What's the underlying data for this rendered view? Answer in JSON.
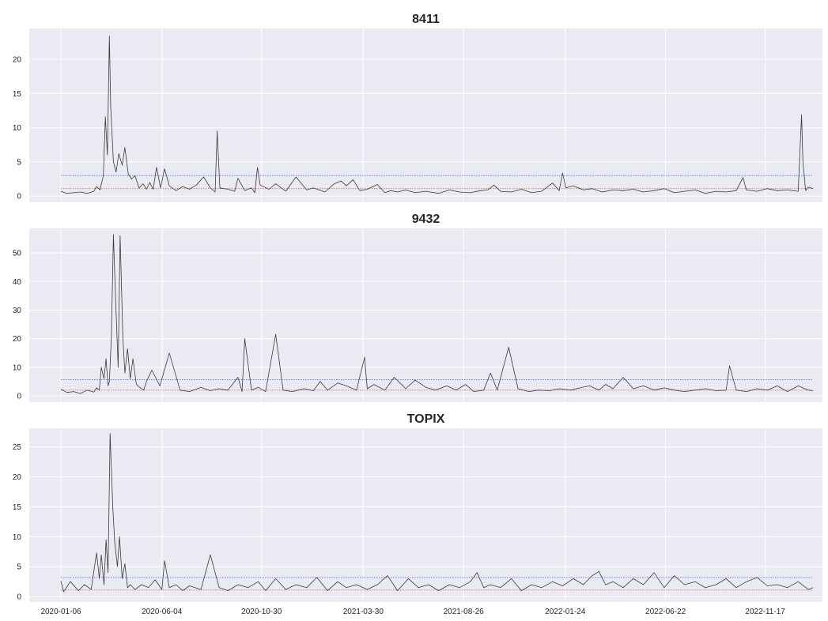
{
  "chart_data": [
    {
      "type": "line",
      "title": "8411",
      "ylim": [
        -0.9,
        24.5
      ],
      "yticks": [
        0,
        5,
        10,
        15,
        20
      ],
      "grid": true,
      "series_color": "#3a3a3a",
      "hlines": [
        {
          "value": 3.0,
          "color": "#5a6cf0",
          "style": "dotted"
        },
        {
          "value": 1.1,
          "color": "#e86464",
          "style": "dotted"
        }
      ],
      "series": [
        {
          "x": [
            "2020-01-06",
            "2020-01-15",
            "2020-01-25",
            "2020-02-04",
            "2020-02-14",
            "2020-02-24",
            "2020-02-28",
            "2020-03-04",
            "2020-03-09",
            "2020-03-12",
            "2020-03-15",
            "2020-03-18",
            "2020-03-20",
            "2020-03-24",
            "2020-03-28",
            "2020-04-01",
            "2020-04-06",
            "2020-04-10",
            "2020-04-15",
            "2020-04-20",
            "2020-04-25",
            "2020-05-01",
            "2020-05-07",
            "2020-05-12",
            "2020-05-17",
            "2020-05-22",
            "2020-05-27",
            "2020-06-02",
            "2020-06-08",
            "2020-06-15",
            "2020-06-25",
            "2020-07-05",
            "2020-07-15",
            "2020-07-25",
            "2020-08-05",
            "2020-08-15",
            "2020-08-22",
            "2020-08-25",
            "2020-08-29",
            "2020-09-10",
            "2020-09-20",
            "2020-09-25",
            "2020-10-05",
            "2020-10-15",
            "2020-10-20",
            "2020-10-24",
            "2020-10-28",
            "2020-11-10",
            "2020-11-20",
            "2020-12-05",
            "2020-12-20",
            "2021-01-05",
            "2021-01-15",
            "2021-02-01",
            "2021-02-15",
            "2021-02-25",
            "2021-03-05",
            "2021-03-15",
            "2021-03-25",
            "2021-04-05",
            "2021-04-20",
            "2021-05-01",
            "2021-05-10",
            "2021-05-20",
            "2021-06-01",
            "2021-06-15",
            "2021-07-01",
            "2021-07-20",
            "2021-08-05",
            "2021-08-20",
            "2021-09-05",
            "2021-09-20",
            "2021-10-01",
            "2021-10-10",
            "2021-10-20",
            "2021-11-05",
            "2021-11-20",
            "2021-12-05",
            "2021-12-20",
            "2022-01-05",
            "2022-01-15",
            "2022-01-20",
            "2022-01-25",
            "2022-02-05",
            "2022-02-20",
            "2022-03-05",
            "2022-03-20",
            "2022-04-05",
            "2022-04-20",
            "2022-05-05",
            "2022-05-20",
            "2022-06-05",
            "2022-06-20",
            "2022-07-05",
            "2022-07-20",
            "2022-08-05",
            "2022-08-20",
            "2022-09-05",
            "2022-09-20",
            "2022-10-05",
            "2022-10-15",
            "2022-10-20",
            "2022-11-05",
            "2022-11-20",
            "2022-12-05",
            "2022-12-20",
            "2023-01-05",
            "2023-01-10",
            "2023-01-12",
            "2023-01-16",
            "2023-01-20",
            "2023-01-27"
          ],
          "y": [
            0.7,
            0.4,
            0.5,
            0.6,
            0.4,
            0.7,
            1.4,
            0.9,
            3.0,
            11.6,
            6.0,
            23.4,
            13.0,
            5.0,
            3.5,
            6.2,
            4.5,
            7.1,
            3.2,
            2.5,
            3.0,
            1.2,
            1.8,
            1.0,
            2.0,
            1.0,
            4.2,
            1.2,
            4.0,
            1.5,
            0.8,
            1.4,
            1.0,
            1.6,
            2.8,
            1.2,
            0.6,
            9.5,
            1.2,
            1.0,
            0.7,
            2.6,
            0.8,
            1.2,
            0.5,
            4.2,
            1.6,
            1.0,
            1.8,
            0.7,
            2.8,
            0.9,
            1.2,
            0.6,
            1.8,
            2.2,
            1.5,
            2.4,
            0.8,
            1.0,
            1.7,
            0.5,
            0.8,
            0.6,
            0.9,
            0.5,
            0.7,
            0.4,
            0.9,
            0.6,
            0.5,
            0.8,
            0.9,
            1.6,
            0.7,
            0.6,
            1.0,
            0.5,
            0.7,
            1.9,
            0.8,
            3.4,
            1.2,
            1.5,
            0.9,
            1.1,
            0.6,
            0.9,
            0.8,
            1.0,
            0.6,
            0.8,
            1.1,
            0.5,
            0.7,
            0.9,
            0.4,
            0.7,
            0.6,
            0.8,
            2.7,
            0.9,
            0.7,
            1.1,
            0.8,
            0.9,
            0.7,
            11.9,
            5.0,
            0.8,
            1.3,
            1.1
          ]
        }
      ]
    },
    {
      "type": "line",
      "title": "9432",
      "ylim": [
        -2.2,
        58.6
      ],
      "yticks": [
        0,
        10,
        20,
        30,
        40,
        50
      ],
      "grid": true,
      "series_color": "#3a3a3a",
      "hlines": [
        {
          "value": 5.7,
          "color": "#5a6cf0",
          "style": "dotted"
        },
        {
          "value": 2.0,
          "color": "#e86464",
          "style": "dotted"
        }
      ],
      "series": [
        {
          "x": [
            "2020-01-06",
            "2020-01-15",
            "2020-01-25",
            "2020-02-04",
            "2020-02-14",
            "2020-02-24",
            "2020-02-28",
            "2020-03-03",
            "2020-03-06",
            "2020-03-10",
            "2020-03-13",
            "2020-03-16",
            "2020-03-18",
            "2020-03-21",
            "2020-03-24",
            "2020-03-27",
            "2020-03-31",
            "2020-04-03",
            "2020-04-07",
            "2020-04-10",
            "2020-04-14",
            "2020-04-18",
            "2020-04-22",
            "2020-04-27",
            "2020-05-02",
            "2020-05-08",
            "2020-05-12",
            "2020-05-20",
            "2020-06-01",
            "2020-06-15",
            "2020-07-01",
            "2020-07-15",
            "2020-08-01",
            "2020-08-15",
            "2020-08-28",
            "2020-09-10",
            "2020-09-25",
            "2020-10-01",
            "2020-10-05",
            "2020-10-15",
            "2020-10-25",
            "2020-11-05",
            "2020-11-20",
            "2020-12-01",
            "2020-12-15",
            "2021-01-01",
            "2021-01-15",
            "2021-01-25",
            "2021-02-05",
            "2021-02-20",
            "2021-03-05",
            "2021-03-20",
            "2021-04-01",
            "2021-04-05",
            "2021-04-15",
            "2021-05-01",
            "2021-05-15",
            "2021-06-01",
            "2021-06-15",
            "2021-07-01",
            "2021-07-15",
            "2021-08-01",
            "2021-08-15",
            "2021-08-29",
            "2021-09-10",
            "2021-09-25",
            "2021-10-05",
            "2021-10-15",
            "2021-11-01",
            "2021-11-15",
            "2021-12-01",
            "2021-12-15",
            "2022-01-01",
            "2022-01-15",
            "2022-02-01",
            "2022-02-15",
            "2022-03-01",
            "2022-03-15",
            "2022-03-25",
            "2022-04-05",
            "2022-04-20",
            "2022-05-05",
            "2022-05-20",
            "2022-06-05",
            "2022-06-20",
            "2022-07-05",
            "2022-07-20",
            "2022-08-05",
            "2022-08-20",
            "2022-09-05",
            "2022-09-20",
            "2022-09-25",
            "2022-10-05",
            "2022-10-20",
            "2022-11-05",
            "2022-11-20",
            "2022-12-05",
            "2022-12-20",
            "2023-01-05",
            "2023-01-20",
            "2023-01-27"
          ],
          "y": [
            2.3,
            1.2,
            1.5,
            0.8,
            2.0,
            1.3,
            2.8,
            2.0,
            10.0,
            6.0,
            13.0,
            3.5,
            5.0,
            21.0,
            56.5,
            35.0,
            10.0,
            56.0,
            20.0,
            8.0,
            16.5,
            6.0,
            13.0,
            4.0,
            3.0,
            2.0,
            5.0,
            9.0,
            3.5,
            15.0,
            2.0,
            1.5,
            3.0,
            1.8,
            2.5,
            2.0,
            6.5,
            1.5,
            20.0,
            2.0,
            3.0,
            1.5,
            21.5,
            2.0,
            1.5,
            2.5,
            1.8,
            5.0,
            2.0,
            4.5,
            3.5,
            2.0,
            13.5,
            2.5,
            4.0,
            2.0,
            6.5,
            2.5,
            5.5,
            3.0,
            2.0,
            3.5,
            2.0,
            4.0,
            1.5,
            2.0,
            8.0,
            2.0,
            17.0,
            2.5,
            1.5,
            2.0,
            1.8,
            2.5,
            2.0,
            2.8,
            3.5,
            2.0,
            4.0,
            2.5,
            6.5,
            2.5,
            3.5,
            2.0,
            2.8,
            2.0,
            1.5,
            2.0,
            2.5,
            1.8,
            2.0,
            10.5,
            2.0,
            1.5,
            2.5,
            2.0,
            3.5,
            1.5,
            3.5,
            2.0,
            1.8
          ]
        }
      ]
    },
    {
      "type": "line",
      "title": "TOPIX",
      "ylim": [
        -0.9,
        28.1
      ],
      "yticks": [
        0,
        5,
        10,
        15,
        20,
        25
      ],
      "grid": true,
      "series_color": "#3a3a3a",
      "hlines": [
        {
          "value": 3.2,
          "color": "#5a6cf0",
          "style": "dotted"
        },
        {
          "value": 1.1,
          "color": "#e86464",
          "style": "dotted"
        }
      ],
      "series": [
        {
          "x": [
            "2020-01-06",
            "2020-01-10",
            "2020-01-20",
            "2020-02-01",
            "2020-02-10",
            "2020-02-20",
            "2020-02-28",
            "2020-03-03",
            "2020-03-06",
            "2020-03-10",
            "2020-03-13",
            "2020-03-16",
            "2020-03-19",
            "2020-03-23",
            "2020-03-26",
            "2020-03-30",
            "2020-04-02",
            "2020-04-06",
            "2020-04-10",
            "2020-04-14",
            "2020-04-18",
            "2020-04-25",
            "2020-05-05",
            "2020-05-15",
            "2020-05-25",
            "2020-06-04",
            "2020-06-08",
            "2020-06-15",
            "2020-06-25",
            "2020-07-05",
            "2020-07-15",
            "2020-08-01",
            "2020-08-15",
            "2020-08-28",
            "2020-09-10",
            "2020-09-25",
            "2020-10-10",
            "2020-10-25",
            "2020-11-05",
            "2020-11-20",
            "2020-12-05",
            "2020-12-20",
            "2021-01-05",
            "2021-01-20",
            "2021-02-05",
            "2021-02-20",
            "2021-03-05",
            "2021-03-20",
            "2021-04-05",
            "2021-04-20",
            "2021-05-05",
            "2021-05-20",
            "2021-06-05",
            "2021-06-20",
            "2021-07-05",
            "2021-07-20",
            "2021-08-05",
            "2021-08-20",
            "2021-09-05",
            "2021-09-15",
            "2021-09-25",
            "2021-10-05",
            "2021-10-20",
            "2021-11-05",
            "2021-11-20",
            "2021-12-05",
            "2021-12-20",
            "2022-01-05",
            "2022-01-20",
            "2022-02-05",
            "2022-02-20",
            "2022-03-05",
            "2022-03-15",
            "2022-03-25",
            "2022-04-05",
            "2022-04-20",
            "2022-05-05",
            "2022-05-20",
            "2022-06-05",
            "2022-06-20",
            "2022-07-05",
            "2022-07-20",
            "2022-08-05",
            "2022-08-20",
            "2022-09-05",
            "2022-09-20",
            "2022-10-05",
            "2022-10-20",
            "2022-11-05",
            "2022-11-20",
            "2022-12-05",
            "2022-12-20",
            "2023-01-05",
            "2023-01-20",
            "2023-01-27"
          ],
          "y": [
            2.6,
            0.8,
            2.5,
            1.0,
            2.0,
            1.2,
            7.3,
            3.0,
            7.0,
            2.0,
            9.5,
            4.0,
            27.2,
            15.0,
            9.0,
            5.0,
            10.0,
            3.0,
            5.5,
            1.5,
            2.0,
            1.2,
            2.0,
            1.5,
            2.8,
            1.2,
            6.0,
            1.5,
            2.0,
            1.0,
            1.8,
            1.2,
            7.0,
            1.5,
            1.0,
            2.0,
            1.5,
            2.5,
            1.0,
            3.0,
            1.2,
            2.0,
            1.5,
            3.2,
            1.0,
            2.5,
            1.5,
            2.0,
            1.2,
            2.0,
            3.5,
            1.0,
            3.0,
            1.5,
            2.0,
            1.0,
            2.0,
            1.5,
            2.5,
            4.0,
            1.5,
            2.0,
            1.5,
            3.0,
            1.0,
            2.0,
            1.5,
            2.5,
            1.8,
            3.0,
            2.0,
            3.5,
            4.2,
            2.0,
            2.5,
            1.5,
            3.0,
            2.0,
            4.0,
            1.5,
            3.5,
            2.0,
            2.5,
            1.5,
            2.0,
            3.0,
            1.5,
            2.5,
            3.2,
            1.8,
            2.0,
            1.5,
            2.5,
            1.2,
            1.5
          ]
        }
      ]
    }
  ],
  "xaxis": {
    "tick_dates": [
      "2020-01-06",
      "2020-06-04",
      "2020-10-30",
      "2021-03-30",
      "2021-08-26",
      "2022-01-24",
      "2022-06-22",
      "2022-11-17"
    ],
    "tick_labels": [
      "2020-01-06",
      "2020-06-04",
      "2020-10-30",
      "2021-03-30",
      "2021-08-26",
      "2022-01-24",
      "2022-06-22",
      "2022-11-17"
    ],
    "range": [
      "2019-11-20",
      "2023-02-10"
    ]
  },
  "colors": {
    "axes_bg": "#eaeaf2",
    "grid": "#ffffff",
    "text": "#262626"
  }
}
